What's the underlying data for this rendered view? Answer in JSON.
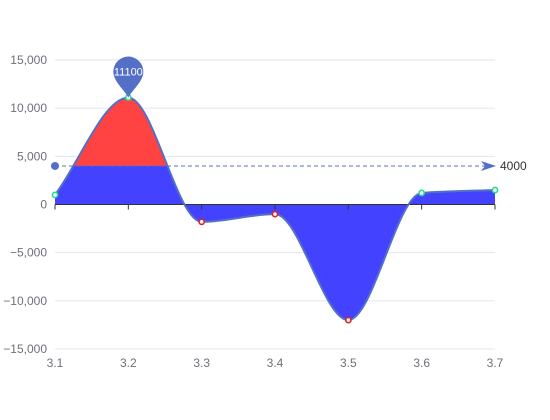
{
  "chart_data": {
    "type": "area",
    "x": [
      3.1,
      3.2,
      3.3,
      3.4,
      3.5,
      3.6,
      3.7
    ],
    "series": [
      {
        "values": [
          1000,
          11100,
          -1800,
          -1000,
          -12000,
          1200,
          1500
        ]
      }
    ],
    "x_ticks": [
      "3.1",
      "3.2",
      "3.3",
      "3.4",
      "3.5",
      "3.6",
      "3.7"
    ],
    "y_ticks": [
      "15,000",
      "10,000",
      "5,000",
      "0",
      "−5,000",
      "−10,000",
      "−15,000"
    ],
    "ylim": [
      -15000,
      15000
    ],
    "xlim": [
      3.1,
      3.7
    ],
    "grid": "horizontal",
    "mark_point": {
      "label": "11100",
      "x": 3.2,
      "value": 11100
    },
    "mark_line": {
      "label": "4000",
      "value": 4000
    },
    "colors": {
      "line": "#5470c6",
      "above_mark_line": "#ff4242",
      "below_mark_line": "#4242ff",
      "point_positive": "#22dd88",
      "point_negative": "#dd2222",
      "grid": "#e0e6f1",
      "axis": "#333333"
    }
  }
}
